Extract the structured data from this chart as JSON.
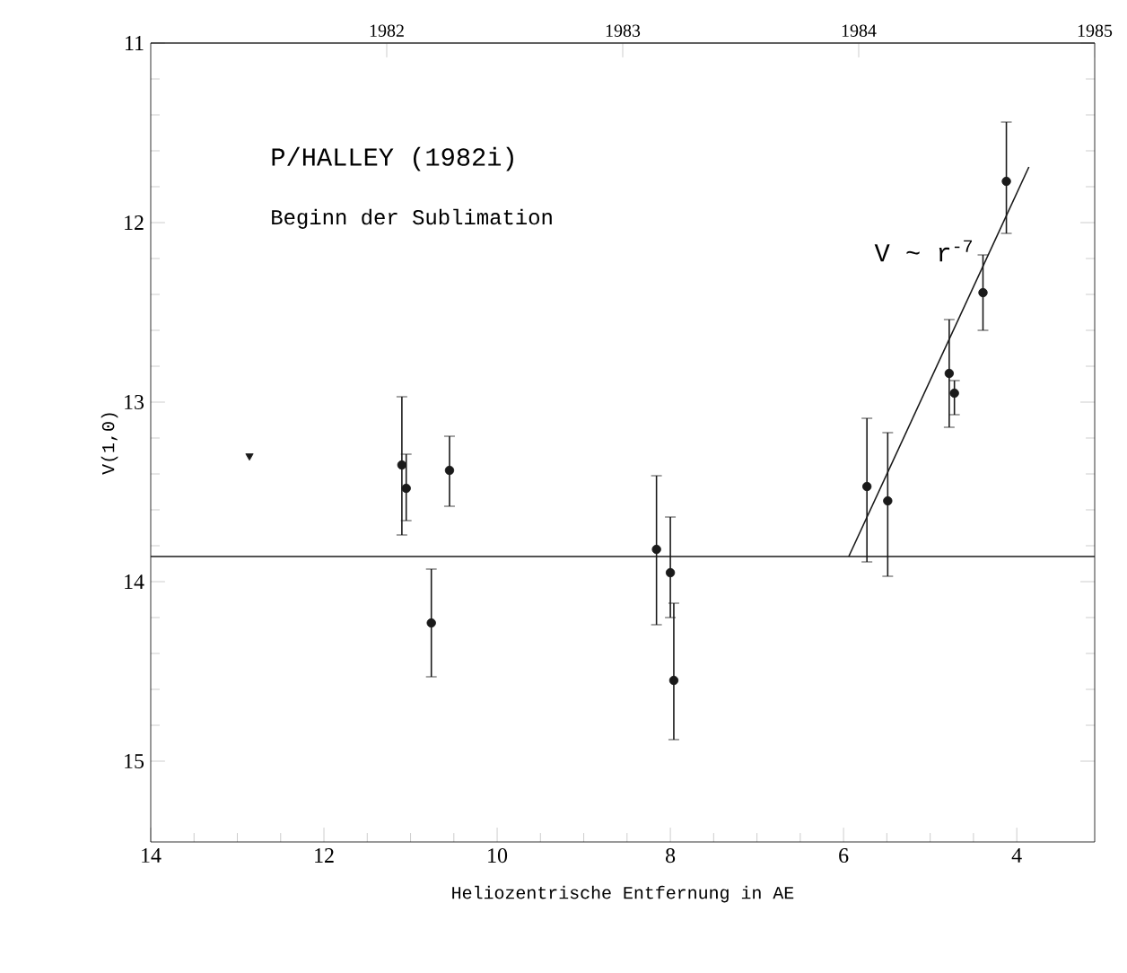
{
  "chart_data": {
    "type": "scatter",
    "xlabel": "Heliozentrische Entfernung in AE",
    "ylabel": "V(1,0)",
    "xlim": [
      14,
      3.1
    ],
    "ylim": [
      15.45,
      11
    ],
    "xticks": [
      14,
      12,
      10,
      8,
      6,
      4
    ],
    "yticks": [
      11,
      12,
      13,
      14,
      15
    ],
    "x2lim": [
      1981,
      1985
    ],
    "x2ticks": [
      1982,
      1983,
      1984,
      1985
    ],
    "series": [
      {
        "color": "#1a1a1a",
        "marker": "circle",
        "x": [
          11.1,
          11.05,
          10.55,
          10.76,
          8.16,
          8.0,
          7.96,
          5.73,
          4.72
        ],
        "values": [
          13.35,
          13.48,
          13.38,
          14.23,
          13.82,
          13.95,
          14.55,
          13.47,
          12.95
        ],
        "errors": [
          [
            12.97,
            13.74
          ],
          [
            13.29,
            13.66
          ],
          [
            13.19,
            13.58
          ],
          [
            13.93,
            14.53
          ],
          [
            13.41,
            14.24
          ],
          [
            13.64,
            14.2
          ],
          [
            14.12,
            14.88
          ],
          [
            13.09,
            13.89
          ],
          [
            12.88,
            13.07
          ]
        ]
      },
      {
        "color": "#1a1a1a",
        "marker": "circle",
        "x": [
          5.49,
          4.78,
          4.39,
          4.12
        ],
        "values": [
          13.55,
          12.84,
          12.39,
          11.77
        ],
        "errors": [
          [
            13.17,
            13.97
          ],
          [
            12.54,
            13.14
          ],
          [
            12.18,
            12.6
          ],
          [
            11.44,
            12.06
          ]
        ]
      },
      {
        "color": "#1a1a1a",
        "marker": "triangle",
        "x": [
          12.86
        ],
        "values": [
          13.3
        ]
      },
      {
        "type": "line",
        "color": "#1a1a1a",
        "marker": "none",
        "line_style": "solid",
        "x": [
          5.94,
          3.86
        ],
        "values": [
          13.86,
          11.69
        ]
      }
    ],
    "ref_lines": [
      {
        "axis": "y",
        "value": 13.86,
        "color": "#1a1a1a"
      }
    ],
    "annotations": [
      "P/HALLEY (1982i)",
      "Beginn der Sublimation",
      "V ~ r$^{-7}$"
    ]
  }
}
